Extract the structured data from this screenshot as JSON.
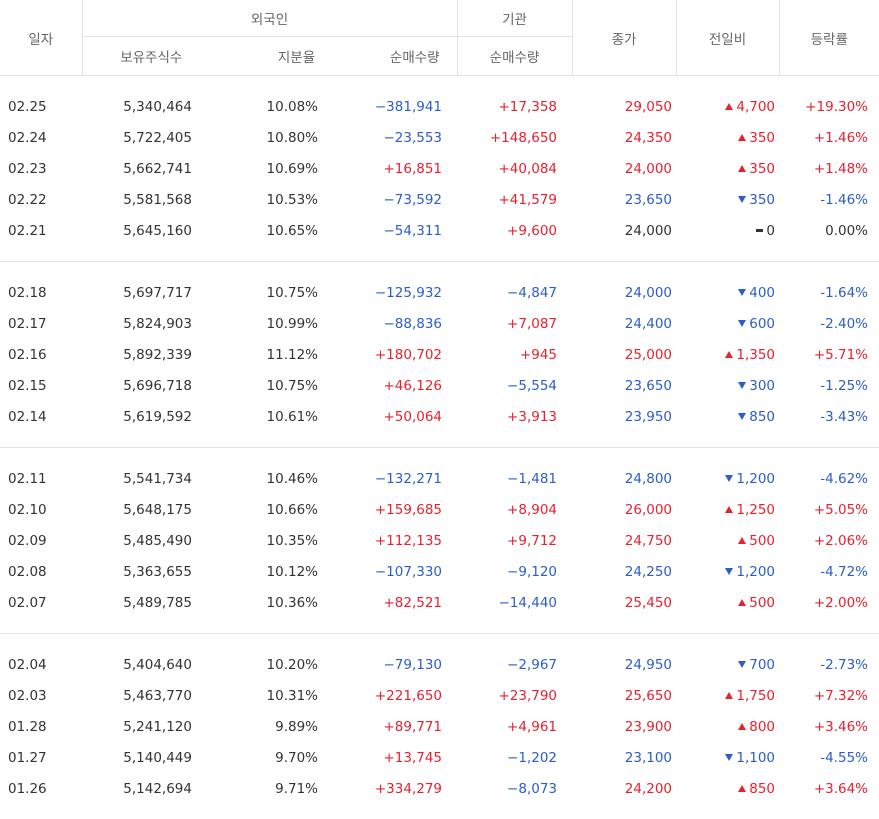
{
  "header": {
    "date": "일자",
    "foreign": "외국인",
    "institution": "기관",
    "close": "종가",
    "change": "전일비",
    "rate": "등락률",
    "holdings": "보유주식수",
    "ratio": "지분율",
    "foreign_net": "순매수량",
    "institution_net": "순매수량"
  },
  "groups": [
    [
      [
        "02.25",
        "5,340,464",
        "10.08%",
        "−381,941",
        "+17,358",
        "29,050",
        "4,700",
        "+19.30%"
      ],
      [
        "02.24",
        "5,722,405",
        "10.80%",
        "−23,553",
        "+148,650",
        "24,350",
        "350",
        "+1.46%"
      ],
      [
        "02.23",
        "5,662,741",
        "10.69%",
        "+16,851",
        "+40,084",
        "24,000",
        "350",
        "+1.48%"
      ],
      [
        "02.22",
        "5,581,568",
        "10.53%",
        "−73,592",
        "+41,579",
        "23,650",
        "350",
        "-1.46%"
      ],
      [
        "02.21",
        "5,645,160",
        "10.65%",
        "−54,311",
        "+9,600",
        "24,000",
        "0",
        "0.00%"
      ]
    ],
    [
      [
        "02.18",
        "5,697,717",
        "10.75%",
        "−125,932",
        "−4,847",
        "24,000",
        "400",
        "-1.64%"
      ],
      [
        "02.17",
        "5,824,903",
        "10.99%",
        "−88,836",
        "+7,087",
        "24,400",
        "600",
        "-2.40%"
      ],
      [
        "02.16",
        "5,892,339",
        "11.12%",
        "+180,702",
        "+945",
        "25,000",
        "1,350",
        "+5.71%"
      ],
      [
        "02.15",
        "5,696,718",
        "10.75%",
        "+46,126",
        "−5,554",
        "23,650",
        "300",
        "-1.25%"
      ],
      [
        "02.14",
        "5,619,592",
        "10.61%",
        "+50,064",
        "+3,913",
        "23,950",
        "850",
        "-3.43%"
      ]
    ],
    [
      [
        "02.11",
        "5,541,734",
        "10.46%",
        "−132,271",
        "−1,481",
        "24,800",
        "1,200",
        "-4.62%"
      ],
      [
        "02.10",
        "5,648,175",
        "10.66%",
        "+159,685",
        "+8,904",
        "26,000",
        "1,250",
        "+5.05%"
      ],
      [
        "02.09",
        "5,485,490",
        "10.35%",
        "+112,135",
        "+9,712",
        "24,750",
        "500",
        "+2.06%"
      ],
      [
        "02.08",
        "5,363,655",
        "10.12%",
        "−107,330",
        "−9,120",
        "24,250",
        "1,200",
        "-4.72%"
      ],
      [
        "02.07",
        "5,489,785",
        "10.36%",
        "+82,521",
        "−14,440",
        "25,450",
        "500",
        "+2.00%"
      ]
    ],
    [
      [
        "02.04",
        "5,404,640",
        "10.20%",
        "−79,130",
        "−2,967",
        "24,950",
        "700",
        "-2.73%"
      ],
      [
        "02.03",
        "5,463,770",
        "10.31%",
        "+221,650",
        "+23,790",
        "25,650",
        "1,750",
        "+7.32%"
      ],
      [
        "01.28",
        "5,241,120",
        "9.89%",
        "+89,771",
        "+4,961",
        "23,900",
        "800",
        "+3.46%"
      ],
      [
        "01.27",
        "5,140,449",
        "9.70%",
        "+13,745",
        "−1,202",
        "23,100",
        "1,100",
        "-4.55%"
      ],
      [
        "01.26",
        "5,142,694",
        "9.71%",
        "+334,279",
        "−8,073",
        "24,200",
        "850",
        "+3.64%"
      ]
    ]
  ]
}
